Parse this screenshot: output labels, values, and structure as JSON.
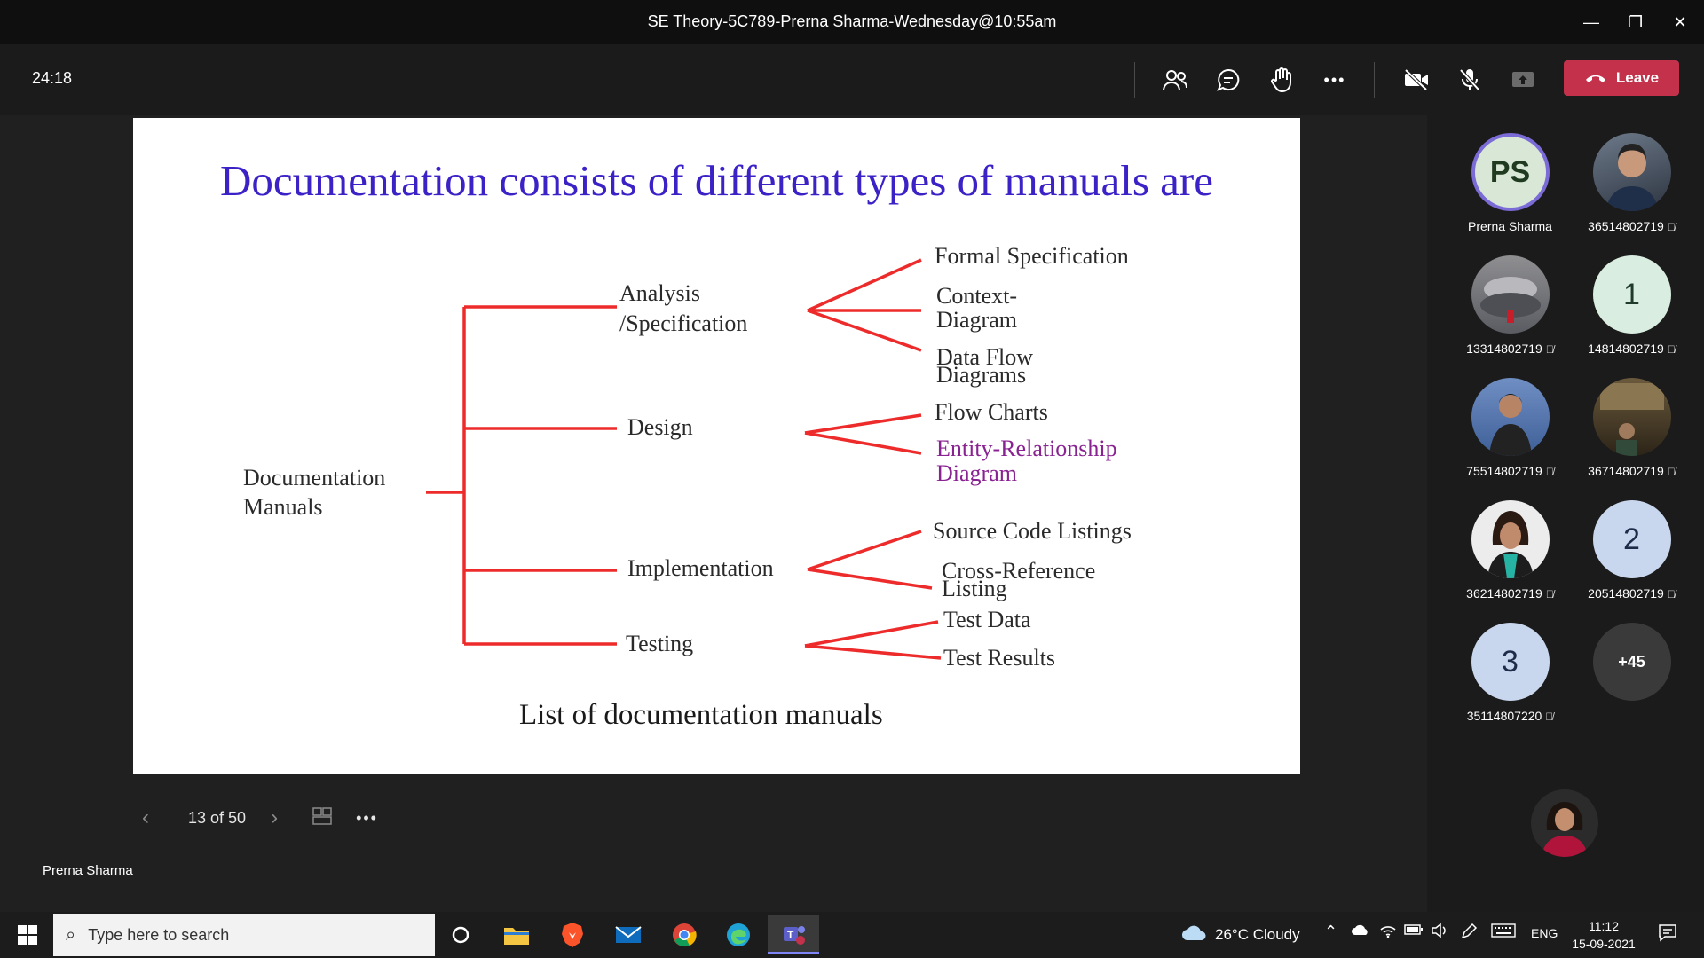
{
  "window": {
    "title": "SE Theory-5C789-Prerna Sharma-Wednesday@10:55am",
    "minimize": "—",
    "restore": "❐",
    "close": "✕"
  },
  "toolbar": {
    "timer": "24:18",
    "leave_label": "Leave",
    "more_label": "•••"
  },
  "slide": {
    "title": "Documentation consists of different types of manuals are",
    "root": [
      "Documentation",
      "Manuals"
    ],
    "branches": [
      {
        "label": [
          "Analysis",
          "/Specification"
        ],
        "leaves": [
          [
            "Formal Specification"
          ],
          [
            "Context-",
            "Diagram"
          ],
          [
            "Data Flow",
            "Diagrams"
          ]
        ]
      },
      {
        "label": [
          "Design"
        ],
        "leaves": [
          [
            "Flow Charts"
          ],
          [
            "Entity-Relationship",
            "Diagram"
          ]
        ]
      },
      {
        "label": [
          "Implementation"
        ],
        "leaves": [
          [
            "Source Code Listings"
          ],
          [
            "Cross-Reference",
            "Listing"
          ]
        ]
      },
      {
        "label": [
          "Testing"
        ],
        "leaves": [
          [
            "Test Data"
          ],
          [
            "Test Results"
          ]
        ]
      }
    ],
    "caption": "List of documentation manuals",
    "colors": {
      "title": "#3b22c7",
      "lines": "#ee2b2b",
      "purple_label": "#8a2392"
    }
  },
  "pager": {
    "label": "13 of 50",
    "more": "•••"
  },
  "presenter": {
    "name": "Prerna Sharma"
  },
  "participants": [
    {
      "name": "Prerna Sharma",
      "initials": "PS",
      "type": "initials",
      "presenter": true,
      "muted": false
    },
    {
      "name": "36514802719",
      "initials": "",
      "type": "photo",
      "muted": true
    },
    {
      "name": "13314802719",
      "initials": "",
      "type": "photo",
      "muted": true
    },
    {
      "name": "14814802719",
      "initials": "1",
      "type": "initials",
      "muted": true
    },
    {
      "name": "75514802719",
      "initials": "",
      "type": "photo",
      "muted": true
    },
    {
      "name": "36714802719",
      "initials": "",
      "type": "photo",
      "muted": true
    },
    {
      "name": "36214802719",
      "initials": "",
      "type": "photo",
      "muted": true
    },
    {
      "name": "20514802719",
      "initials": "2",
      "type": "initials",
      "muted": true
    },
    {
      "name": "35114807220",
      "initials": "3",
      "type": "initials",
      "muted": true
    },
    {
      "name": "",
      "initials": "+45",
      "type": "overflow",
      "muted": false
    }
  ],
  "taskbar": {
    "search_placeholder": "Type here to search",
    "weather": "26°C  Cloudy",
    "language": "ENG",
    "time": "11:12",
    "date": "15-09-2021"
  }
}
